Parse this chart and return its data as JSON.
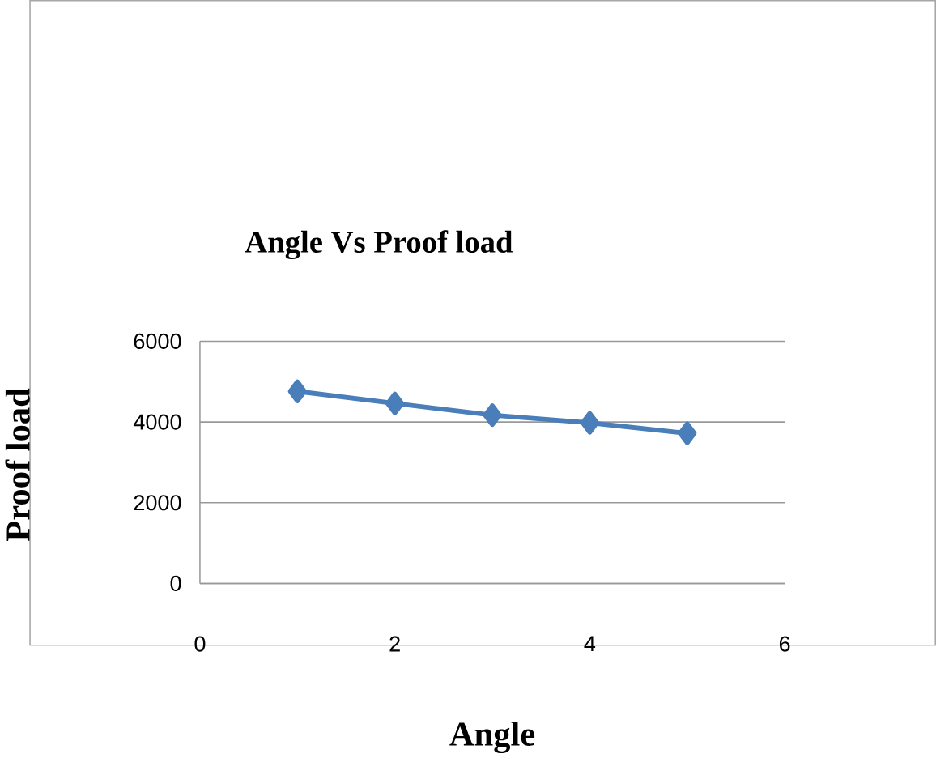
{
  "chart_data": {
    "type": "line",
    "title": "Angle Vs Proof load",
    "xlabel": "Angle",
    "ylabel": "Proof load",
    "x": [
      1,
      2,
      3,
      4,
      5
    ],
    "series": [
      {
        "color": "#4a7ebb",
        "values": [
          4760,
          4460,
          4170,
          3980,
          3720
        ]
      }
    ],
    "xlim": [
      0,
      6
    ],
    "xticks": [
      0,
      2,
      4,
      6
    ],
    "ylim": [
      0,
      6000
    ],
    "yticks": [
      0,
      2000,
      4000,
      6000
    ],
    "grid": "y",
    "marker": "diamond",
    "line_style": "solid"
  }
}
